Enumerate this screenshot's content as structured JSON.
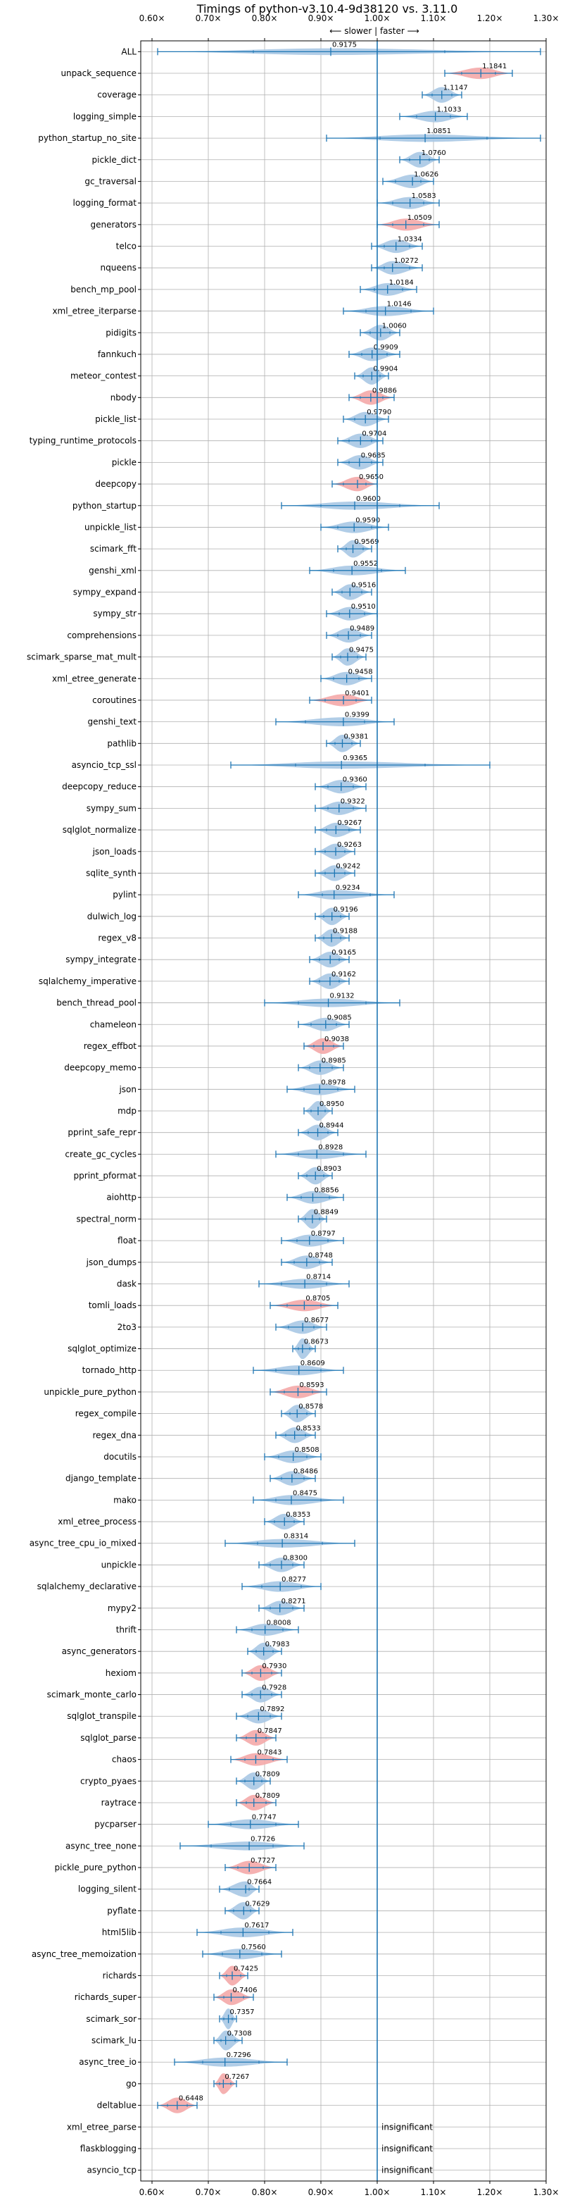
{
  "chart_data": {
    "type": "violin",
    "title": "Timings of python-v3.10.4-9d38120 vs. 3.11.0",
    "direction_labels": {
      "slower": "⟵ slower",
      "sep": "|",
      "faster": "faster ⟶"
    },
    "xlim": [
      0.58,
      1.3
    ],
    "xticks": [
      0.6,
      0.7,
      0.8,
      0.9,
      1.0,
      1.1,
      1.2,
      1.3
    ],
    "xtick_labels": [
      "0.60×",
      "0.70×",
      "0.80×",
      "0.90×",
      "1.00×",
      "1.10×",
      "1.20×",
      "1.30×"
    ],
    "reference_line": 1.0,
    "grid": true,
    "colors": {
      "faster": "#a8c8e4",
      "slower": "#f4a9a8",
      "line": "#1f77b4",
      "grid": "#b0b0b0"
    },
    "rows": [
      {
        "name": "ALL",
        "value": 0.9175,
        "lo": 0.61,
        "hi": 1.29,
        "status": "faster"
      },
      {
        "name": "unpack_sequence",
        "value": 1.1841,
        "lo": 1.12,
        "hi": 1.24,
        "status": "slower"
      },
      {
        "name": "coverage",
        "value": 1.1147,
        "lo": 1.08,
        "hi": 1.15,
        "status": "faster"
      },
      {
        "name": "logging_simple",
        "value": 1.1033,
        "lo": 1.04,
        "hi": 1.16,
        "status": "faster"
      },
      {
        "name": "python_startup_no_site",
        "value": 1.0851,
        "lo": 0.91,
        "hi": 1.29,
        "status": "faster"
      },
      {
        "name": "pickle_dict",
        "value": 1.076,
        "lo": 1.04,
        "hi": 1.11,
        "status": "faster"
      },
      {
        "name": "gc_traversal",
        "value": 1.0626,
        "lo": 1.01,
        "hi": 1.1,
        "status": "faster"
      },
      {
        "name": "logging_format",
        "value": 1.0583,
        "lo": 1.0,
        "hi": 1.11,
        "status": "faster"
      },
      {
        "name": "generators",
        "value": 1.0509,
        "lo": 1.0,
        "hi": 1.11,
        "status": "slower"
      },
      {
        "name": "telco",
        "value": 1.0334,
        "lo": 0.99,
        "hi": 1.08,
        "status": "faster"
      },
      {
        "name": "nqueens",
        "value": 1.0272,
        "lo": 0.99,
        "hi": 1.08,
        "status": "faster"
      },
      {
        "name": "bench_mp_pool",
        "value": 1.0184,
        "lo": 0.97,
        "hi": 1.07,
        "status": "faster"
      },
      {
        "name": "xml_etree_iterparse",
        "value": 1.0146,
        "lo": 0.94,
        "hi": 1.1,
        "status": "faster"
      },
      {
        "name": "pidigits",
        "value": 1.006,
        "lo": 0.97,
        "hi": 1.04,
        "status": "faster"
      },
      {
        "name": "fannkuch",
        "value": 0.9909,
        "lo": 0.95,
        "hi": 1.04,
        "status": "faster"
      },
      {
        "name": "meteor_contest",
        "value": 0.9904,
        "lo": 0.96,
        "hi": 1.02,
        "status": "faster"
      },
      {
        "name": "nbody",
        "value": 0.9886,
        "lo": 0.95,
        "hi": 1.03,
        "status": "slower"
      },
      {
        "name": "pickle_list",
        "value": 0.979,
        "lo": 0.94,
        "hi": 1.02,
        "status": "faster"
      },
      {
        "name": "typing_runtime_protocols",
        "value": 0.9704,
        "lo": 0.93,
        "hi": 1.01,
        "status": "faster"
      },
      {
        "name": "pickle",
        "value": 0.9685,
        "lo": 0.93,
        "hi": 1.01,
        "status": "faster"
      },
      {
        "name": "deepcopy",
        "value": 0.965,
        "lo": 0.92,
        "hi": 1.0,
        "status": "slower"
      },
      {
        "name": "python_startup",
        "value": 0.96,
        "lo": 0.83,
        "hi": 1.11,
        "status": "faster"
      },
      {
        "name": "unpickle_list",
        "value": 0.959,
        "lo": 0.9,
        "hi": 1.02,
        "status": "faster"
      },
      {
        "name": "scimark_fft",
        "value": 0.9569,
        "lo": 0.93,
        "hi": 0.99,
        "status": "faster"
      },
      {
        "name": "genshi_xml",
        "value": 0.9552,
        "lo": 0.88,
        "hi": 1.05,
        "status": "faster"
      },
      {
        "name": "sympy_expand",
        "value": 0.9516,
        "lo": 0.92,
        "hi": 0.99,
        "status": "faster"
      },
      {
        "name": "sympy_str",
        "value": 0.951,
        "lo": 0.91,
        "hi": 1.0,
        "status": "faster"
      },
      {
        "name": "comprehensions",
        "value": 0.9489,
        "lo": 0.91,
        "hi": 0.99,
        "status": "faster"
      },
      {
        "name": "scimark_sparse_mat_mult",
        "value": 0.9475,
        "lo": 0.92,
        "hi": 0.98,
        "status": "faster"
      },
      {
        "name": "xml_etree_generate",
        "value": 0.9458,
        "lo": 0.9,
        "hi": 0.99,
        "status": "faster"
      },
      {
        "name": "coroutines",
        "value": 0.9401,
        "lo": 0.88,
        "hi": 0.99,
        "status": "slower"
      },
      {
        "name": "genshi_text",
        "value": 0.9399,
        "lo": 0.82,
        "hi": 1.03,
        "status": "faster"
      },
      {
        "name": "pathlib",
        "value": 0.9381,
        "lo": 0.91,
        "hi": 0.97,
        "status": "faster"
      },
      {
        "name": "asyncio_tcp_ssl",
        "value": 0.9365,
        "lo": 0.74,
        "hi": 1.2,
        "status": "faster"
      },
      {
        "name": "deepcopy_reduce",
        "value": 0.936,
        "lo": 0.89,
        "hi": 0.98,
        "status": "faster"
      },
      {
        "name": "sympy_sum",
        "value": 0.9322,
        "lo": 0.89,
        "hi": 0.98,
        "status": "faster"
      },
      {
        "name": "sqlglot_normalize",
        "value": 0.9267,
        "lo": 0.89,
        "hi": 0.97,
        "status": "faster"
      },
      {
        "name": "json_loads",
        "value": 0.9263,
        "lo": 0.89,
        "hi": 0.96,
        "status": "faster"
      },
      {
        "name": "sqlite_synth",
        "value": 0.9242,
        "lo": 0.89,
        "hi": 0.96,
        "status": "faster"
      },
      {
        "name": "pylint",
        "value": 0.9234,
        "lo": 0.86,
        "hi": 1.03,
        "status": "faster"
      },
      {
        "name": "dulwich_log",
        "value": 0.9196,
        "lo": 0.89,
        "hi": 0.95,
        "status": "faster"
      },
      {
        "name": "regex_v8",
        "value": 0.9188,
        "lo": 0.89,
        "hi": 0.95,
        "status": "faster"
      },
      {
        "name": "sympy_integrate",
        "value": 0.9165,
        "lo": 0.88,
        "hi": 0.95,
        "status": "faster"
      },
      {
        "name": "sqlalchemy_imperative",
        "value": 0.9162,
        "lo": 0.88,
        "hi": 0.95,
        "status": "faster"
      },
      {
        "name": "bench_thread_pool",
        "value": 0.9132,
        "lo": 0.8,
        "hi": 1.04,
        "status": "faster"
      },
      {
        "name": "chameleon",
        "value": 0.9085,
        "lo": 0.86,
        "hi": 0.95,
        "status": "faster"
      },
      {
        "name": "regex_effbot",
        "value": 0.9038,
        "lo": 0.87,
        "hi": 0.94,
        "status": "slower"
      },
      {
        "name": "deepcopy_memo",
        "value": 0.8985,
        "lo": 0.86,
        "hi": 0.94,
        "status": "faster"
      },
      {
        "name": "json",
        "value": 0.8978,
        "lo": 0.84,
        "hi": 0.96,
        "status": "faster"
      },
      {
        "name": "mdp",
        "value": 0.895,
        "lo": 0.87,
        "hi": 0.92,
        "status": "faster"
      },
      {
        "name": "pprint_safe_repr",
        "value": 0.8944,
        "lo": 0.86,
        "hi": 0.93,
        "status": "faster"
      },
      {
        "name": "create_gc_cycles",
        "value": 0.8928,
        "lo": 0.82,
        "hi": 0.98,
        "status": "faster"
      },
      {
        "name": "pprint_pformat",
        "value": 0.8903,
        "lo": 0.86,
        "hi": 0.92,
        "status": "faster"
      },
      {
        "name": "aiohttp",
        "value": 0.8856,
        "lo": 0.84,
        "hi": 0.94,
        "status": "faster"
      },
      {
        "name": "spectral_norm",
        "value": 0.8849,
        "lo": 0.86,
        "hi": 0.91,
        "status": "faster"
      },
      {
        "name": "float",
        "value": 0.8797,
        "lo": 0.83,
        "hi": 0.94,
        "status": "faster"
      },
      {
        "name": "json_dumps",
        "value": 0.8748,
        "lo": 0.83,
        "hi": 0.92,
        "status": "faster"
      },
      {
        "name": "dask",
        "value": 0.8714,
        "lo": 0.79,
        "hi": 0.95,
        "status": "faster"
      },
      {
        "name": "tomli_loads",
        "value": 0.8705,
        "lo": 0.81,
        "hi": 0.93,
        "status": "slower"
      },
      {
        "name": "2to3",
        "value": 0.8677,
        "lo": 0.82,
        "hi": 0.91,
        "status": "faster"
      },
      {
        "name": "sqlglot_optimize",
        "value": 0.8673,
        "lo": 0.85,
        "hi": 0.89,
        "status": "faster"
      },
      {
        "name": "tornado_http",
        "value": 0.8609,
        "lo": 0.78,
        "hi": 0.94,
        "status": "faster"
      },
      {
        "name": "unpickle_pure_python",
        "value": 0.8593,
        "lo": 0.81,
        "hi": 0.91,
        "status": "slower"
      },
      {
        "name": "regex_compile",
        "value": 0.8578,
        "lo": 0.83,
        "hi": 0.89,
        "status": "faster"
      },
      {
        "name": "regex_dna",
        "value": 0.8533,
        "lo": 0.82,
        "hi": 0.89,
        "status": "faster"
      },
      {
        "name": "docutils",
        "value": 0.8508,
        "lo": 0.8,
        "hi": 0.9,
        "status": "faster"
      },
      {
        "name": "django_template",
        "value": 0.8486,
        "lo": 0.81,
        "hi": 0.89,
        "status": "faster"
      },
      {
        "name": "mako",
        "value": 0.8475,
        "lo": 0.78,
        "hi": 0.94,
        "status": "faster"
      },
      {
        "name": "xml_etree_process",
        "value": 0.8353,
        "lo": 0.8,
        "hi": 0.87,
        "status": "faster"
      },
      {
        "name": "async_tree_cpu_io_mixed",
        "value": 0.8314,
        "lo": 0.73,
        "hi": 0.96,
        "status": "faster"
      },
      {
        "name": "unpickle",
        "value": 0.83,
        "lo": 0.79,
        "hi": 0.87,
        "status": "faster"
      },
      {
        "name": "sqlalchemy_declarative",
        "value": 0.8277,
        "lo": 0.76,
        "hi": 0.9,
        "status": "faster"
      },
      {
        "name": "mypy2",
        "value": 0.8271,
        "lo": 0.79,
        "hi": 0.87,
        "status": "faster"
      },
      {
        "name": "thrift",
        "value": 0.8008,
        "lo": 0.75,
        "hi": 0.86,
        "status": "faster"
      },
      {
        "name": "async_generators",
        "value": 0.7983,
        "lo": 0.77,
        "hi": 0.83,
        "status": "faster"
      },
      {
        "name": "hexiom",
        "value": 0.793,
        "lo": 0.76,
        "hi": 0.83,
        "status": "slower"
      },
      {
        "name": "scimark_monte_carlo",
        "value": 0.7928,
        "lo": 0.76,
        "hi": 0.83,
        "status": "faster"
      },
      {
        "name": "sqlglot_transpile",
        "value": 0.7892,
        "lo": 0.75,
        "hi": 0.83,
        "status": "faster"
      },
      {
        "name": "sqlglot_parse",
        "value": 0.7847,
        "lo": 0.75,
        "hi": 0.82,
        "status": "slower"
      },
      {
        "name": "chaos",
        "value": 0.7843,
        "lo": 0.74,
        "hi": 0.84,
        "status": "slower"
      },
      {
        "name": "crypto_pyaes",
        "value": 0.7809,
        "lo": 0.75,
        "hi": 0.81,
        "status": "faster"
      },
      {
        "name": "raytrace",
        "value": 0.7809,
        "lo": 0.75,
        "hi": 0.82,
        "status": "slower"
      },
      {
        "name": "pycparser",
        "value": 0.7747,
        "lo": 0.7,
        "hi": 0.86,
        "status": "faster"
      },
      {
        "name": "async_tree_none",
        "value": 0.7726,
        "lo": 0.65,
        "hi": 0.87,
        "status": "faster"
      },
      {
        "name": "pickle_pure_python",
        "value": 0.7727,
        "lo": 0.73,
        "hi": 0.82,
        "status": "slower"
      },
      {
        "name": "logging_silent",
        "value": 0.7664,
        "lo": 0.72,
        "hi": 0.79,
        "status": "faster"
      },
      {
        "name": "pyflate",
        "value": 0.7629,
        "lo": 0.73,
        "hi": 0.79,
        "status": "faster"
      },
      {
        "name": "html5lib",
        "value": 0.7617,
        "lo": 0.68,
        "hi": 0.85,
        "status": "faster"
      },
      {
        "name": "async_tree_memoization",
        "value": 0.756,
        "lo": 0.69,
        "hi": 0.83,
        "status": "faster"
      },
      {
        "name": "richards",
        "value": 0.7425,
        "lo": 0.72,
        "hi": 0.77,
        "status": "slower"
      },
      {
        "name": "richards_super",
        "value": 0.7406,
        "lo": 0.71,
        "hi": 0.78,
        "status": "slower"
      },
      {
        "name": "scimark_sor",
        "value": 0.7357,
        "lo": 0.72,
        "hi": 0.75,
        "status": "faster"
      },
      {
        "name": "scimark_lu",
        "value": 0.7308,
        "lo": 0.71,
        "hi": 0.76,
        "status": "faster"
      },
      {
        "name": "async_tree_io",
        "value": 0.7296,
        "lo": 0.64,
        "hi": 0.84,
        "status": "faster"
      },
      {
        "name": "go",
        "value": 0.7267,
        "lo": 0.71,
        "hi": 0.75,
        "status": "slower"
      },
      {
        "name": "deltablue",
        "value": 0.6448,
        "lo": 0.61,
        "hi": 0.68,
        "status": "slower"
      },
      {
        "name": "xml_etree_parse",
        "value": null,
        "lo": null,
        "hi": null,
        "status": "insignificant"
      },
      {
        "name": "flaskblogging",
        "value": null,
        "lo": null,
        "hi": null,
        "status": "insignificant"
      },
      {
        "name": "asyncio_tcp",
        "value": null,
        "lo": null,
        "hi": null,
        "status": "insignificant"
      }
    ],
    "insignificant_label": "insignificant"
  }
}
